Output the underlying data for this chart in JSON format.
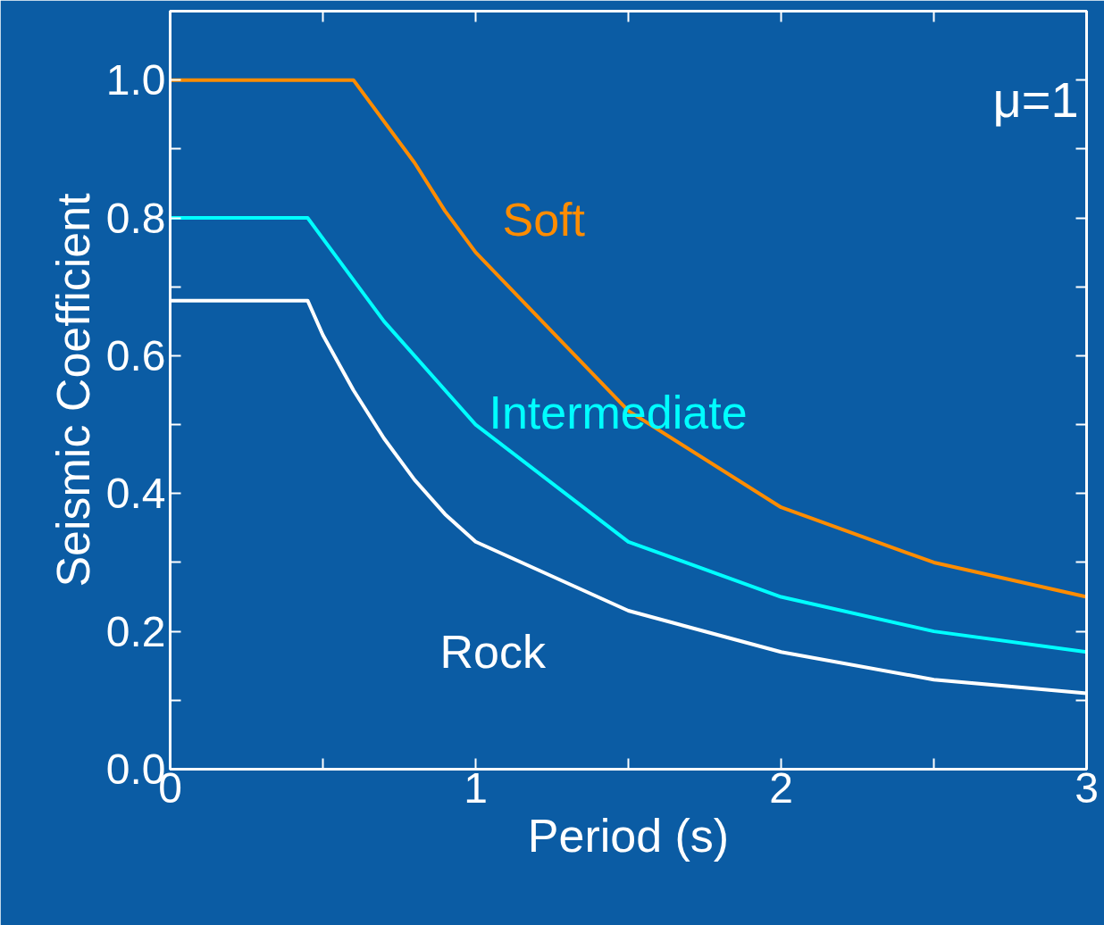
{
  "chart_data": {
    "type": "line",
    "xlabel": "Period (s)",
    "ylabel": "Seismic Coefficient",
    "annotations": [
      "μ=1"
    ],
    "xlim": [
      0,
      3
    ],
    "ylim": [
      0,
      1.1
    ],
    "xticks": [
      0,
      {
        "value": 0.5,
        "label": null
      },
      1,
      {
        "value": 1.5,
        "label": null
      },
      2,
      {
        "value": 2.5,
        "label": null
      },
      3
    ],
    "yticks": [
      {
        "value": 0,
        "label": "0.0"
      },
      {
        "value": 0.1,
        "label": null
      },
      {
        "value": 0.2,
        "label": "0.2"
      },
      {
        "value": 0.3,
        "label": null
      },
      {
        "value": 0.4,
        "label": "0.4"
      },
      {
        "value": 0.5,
        "label": null
      },
      {
        "value": 0.6,
        "label": "0.6"
      },
      {
        "value": 0.7,
        "label": null
      },
      {
        "value": 0.8,
        "label": "0.8"
      },
      {
        "value": 0.9,
        "label": null
      },
      {
        "value": 1.0,
        "label": "1.0"
      }
    ],
    "grid": false,
    "marker": "none",
    "line_style": "solid",
    "series": [
      {
        "name": "Soft",
        "color": "#ff8c00",
        "x": [
          0,
          0.6,
          0.8,
          0.9,
          1.0,
          1.5,
          2.0,
          2.5,
          3.0
        ],
        "values": [
          1.0,
          1.0,
          0.88,
          0.81,
          0.75,
          0.52,
          0.38,
          0.3,
          0.25
        ]
      },
      {
        "name": "Intermediate",
        "color": "#00ffff",
        "x": [
          0,
          0.45,
          0.7,
          1.0,
          1.5,
          2.0,
          2.5,
          3.0
        ],
        "values": [
          0.8,
          0.8,
          0.65,
          0.5,
          0.33,
          0.25,
          0.2,
          0.17
        ]
      },
      {
        "name": "Rock",
        "color": "#ffffff",
        "x": [
          0,
          0.45,
          0.5,
          0.6,
          0.7,
          0.8,
          0.9,
          1.0,
          1.5,
          2.0,
          2.5,
          3.0
        ],
        "values": [
          0.68,
          0.68,
          0.63,
          0.55,
          0.48,
          0.42,
          0.37,
          0.33,
          0.23,
          0.17,
          0.13,
          0.11
        ]
      }
    ]
  }
}
